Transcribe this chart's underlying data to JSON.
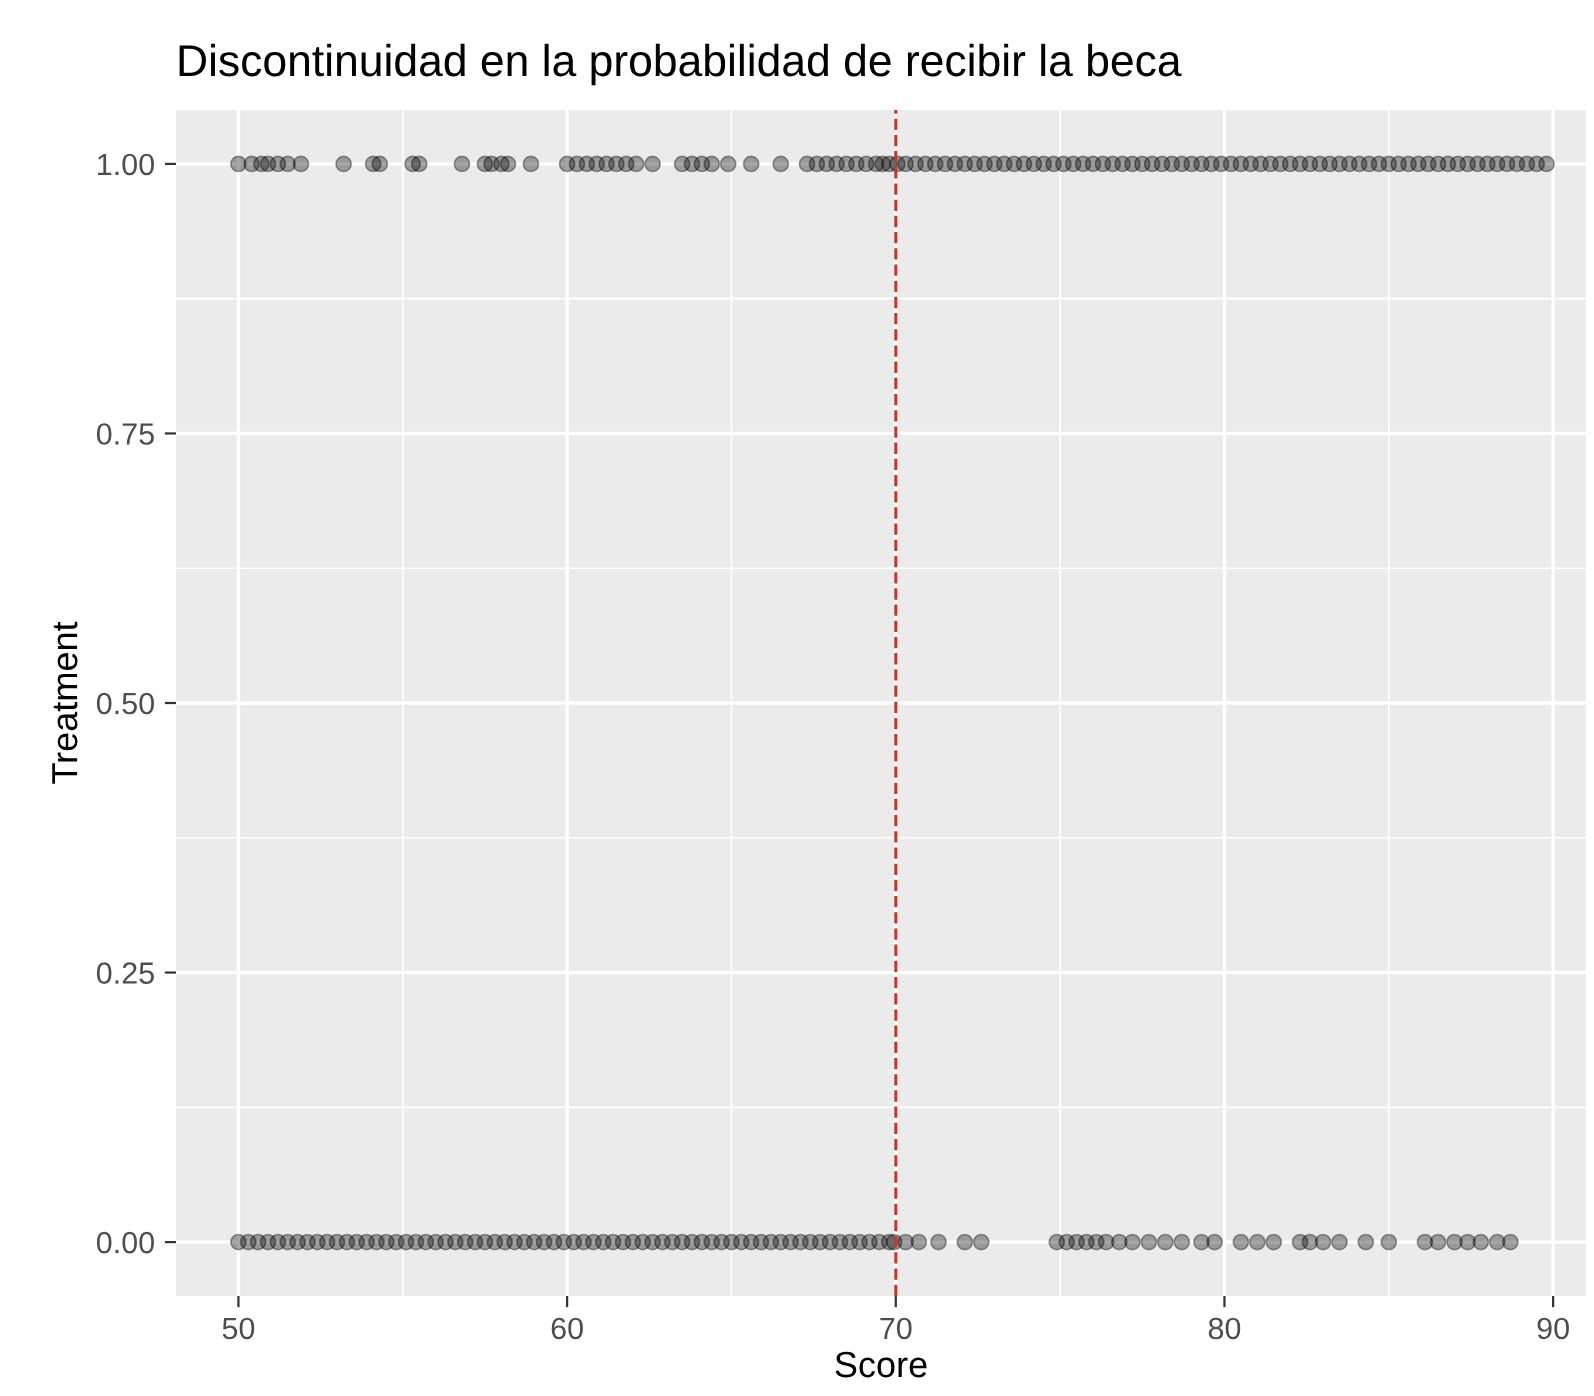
{
  "chart_data": {
    "type": "scatter",
    "title": "Discontinuidad en la probabilidad de recibir la beca",
    "xlabel": "Score",
    "ylabel": "Treatment",
    "series": [
      {
        "color": "#000000",
        "x": [
          50.0,
          50.3,
          50.6,
          50.9,
          51.2,
          51.5,
          51.8,
          52.1,
          52.4,
          52.7,
          53.0,
          53.3,
          53.6,
          53.9,
          54.2,
          54.5,
          54.8,
          55.1,
          55.4,
          55.7,
          56.0,
          56.3,
          56.6,
          56.9,
          57.2,
          57.5,
          57.8,
          58.1,
          58.4,
          58.7,
          59.0,
          59.3,
          59.6,
          59.9,
          60.2,
          60.5,
          60.8,
          61.1,
          61.4,
          61.7,
          62.0,
          62.3,
          62.6,
          62.9,
          63.2,
          63.5,
          63.8,
          64.1,
          64.4,
          64.7,
          65.0,
          65.3,
          65.6,
          65.9,
          66.2,
          66.5,
          66.8,
          67.1,
          67.4,
          67.7,
          68.0,
          68.3,
          68.6,
          68.9,
          69.2,
          69.5,
          69.8,
          69.95,
          70.3,
          70.7,
          71.3,
          72.1,
          72.6,
          74.9,
          75.2,
          75.5,
          75.8,
          76.1,
          76.4,
          76.8,
          77.2,
          77.7,
          78.2,
          78.7,
          79.3,
          79.7,
          80.5,
          81.0,
          81.5,
          82.3,
          82.6,
          83.0,
          83.5,
          84.3,
          85.0,
          86.1,
          86.5,
          87.0,
          87.4,
          87.8,
          88.3,
          88.7
        ],
        "values": [
          0,
          0,
          0,
          0,
          0,
          0,
          0,
          0,
          0,
          0,
          0,
          0,
          0,
          0,
          0,
          0,
          0,
          0,
          0,
          0,
          0,
          0,
          0,
          0,
          0,
          0,
          0,
          0,
          0,
          0,
          0,
          0,
          0,
          0,
          0,
          0,
          0,
          0,
          0,
          0,
          0,
          0,
          0,
          0,
          0,
          0,
          0,
          0,
          0,
          0,
          0,
          0,
          0,
          0,
          0,
          0,
          0,
          0,
          0,
          0,
          0,
          0,
          0,
          0,
          0,
          0,
          0,
          0,
          0,
          0,
          0,
          0,
          0,
          0,
          0,
          0,
          0,
          0,
          0,
          0,
          0,
          0,
          0,
          0,
          0,
          0,
          0,
          0,
          0,
          0,
          0,
          0,
          0,
          0,
          0,
          0,
          0,
          0,
          0,
          0,
          0,
          0
        ]
      },
      {
        "color": "#000000",
        "x": [
          50.0,
          50.4,
          50.7,
          50.9,
          51.2,
          51.5,
          51.9,
          53.2,
          54.1,
          54.3,
          55.3,
          55.5,
          56.8,
          57.5,
          57.7,
          58.0,
          58.2,
          58.9,
          60.0,
          60.3,
          60.6,
          60.9,
          61.2,
          61.5,
          61.8,
          62.1,
          62.6,
          63.5,
          63.8,
          64.1,
          64.4,
          64.9,
          65.6,
          66.5,
          67.3,
          67.6,
          67.9,
          68.2,
          68.5,
          68.8,
          69.1,
          69.4,
          69.6,
          69.8,
          70.05,
          70.3,
          70.6,
          70.9,
          71.2,
          71.5,
          71.8,
          72.1,
          72.4,
          72.7,
          73.0,
          73.3,
          73.6,
          73.9,
          74.2,
          74.5,
          74.8,
          75.1,
          75.4,
          75.7,
          76.0,
          76.3,
          76.6,
          76.9,
          77.2,
          77.5,
          77.8,
          78.1,
          78.4,
          78.7,
          79.0,
          79.3,
          79.6,
          79.9,
          80.2,
          80.5,
          80.8,
          81.1,
          81.4,
          81.7,
          82.0,
          82.3,
          82.6,
          82.9,
          83.2,
          83.5,
          83.8,
          84.1,
          84.4,
          84.7,
          85.0,
          85.3,
          85.6,
          85.9,
          86.2,
          86.5,
          86.8,
          87.1,
          87.4,
          87.7,
          88.0,
          88.3,
          88.6,
          88.9,
          89.2,
          89.5,
          89.8
        ],
        "values": [
          1,
          1,
          1,
          1,
          1,
          1,
          1,
          1,
          1,
          1,
          1,
          1,
          1,
          1,
          1,
          1,
          1,
          1,
          1,
          1,
          1,
          1,
          1,
          1,
          1,
          1,
          1,
          1,
          1,
          1,
          1,
          1,
          1,
          1,
          1,
          1,
          1,
          1,
          1,
          1,
          1,
          1,
          1,
          1,
          1,
          1,
          1,
          1,
          1,
          1,
          1,
          1,
          1,
          1,
          1,
          1,
          1,
          1,
          1,
          1,
          1,
          1,
          1,
          1,
          1,
          1,
          1,
          1,
          1,
          1,
          1,
          1,
          1,
          1,
          1,
          1,
          1,
          1,
          1,
          1,
          1,
          1,
          1,
          1,
          1,
          1,
          1,
          1,
          1,
          1,
          1,
          1,
          1,
          1,
          1,
          1,
          1,
          1,
          1,
          1,
          1,
          1,
          1,
          1,
          1,
          1,
          1,
          1,
          1,
          1,
          1
        ]
      }
    ],
    "xlim": [
      48.1,
      91.0
    ],
    "ylim": [
      -0.05,
      1.05
    ],
    "xticks": [
      50,
      60,
      70,
      80,
      90
    ],
    "yticks": [
      {
        "value": 0,
        "label": "0.00"
      },
      {
        "value": 0.25,
        "label": "0.25"
      },
      {
        "value": 0.5,
        "label": "0.50"
      },
      {
        "value": 0.75,
        "label": "0.75"
      },
      {
        "value": 1,
        "label": "1.00"
      }
    ],
    "ref_lines": [
      {
        "axis": "x",
        "value": 70,
        "color": "#c0392b",
        "line_style": "dashed"
      }
    ],
    "grid": true,
    "marker": "circle"
  }
}
